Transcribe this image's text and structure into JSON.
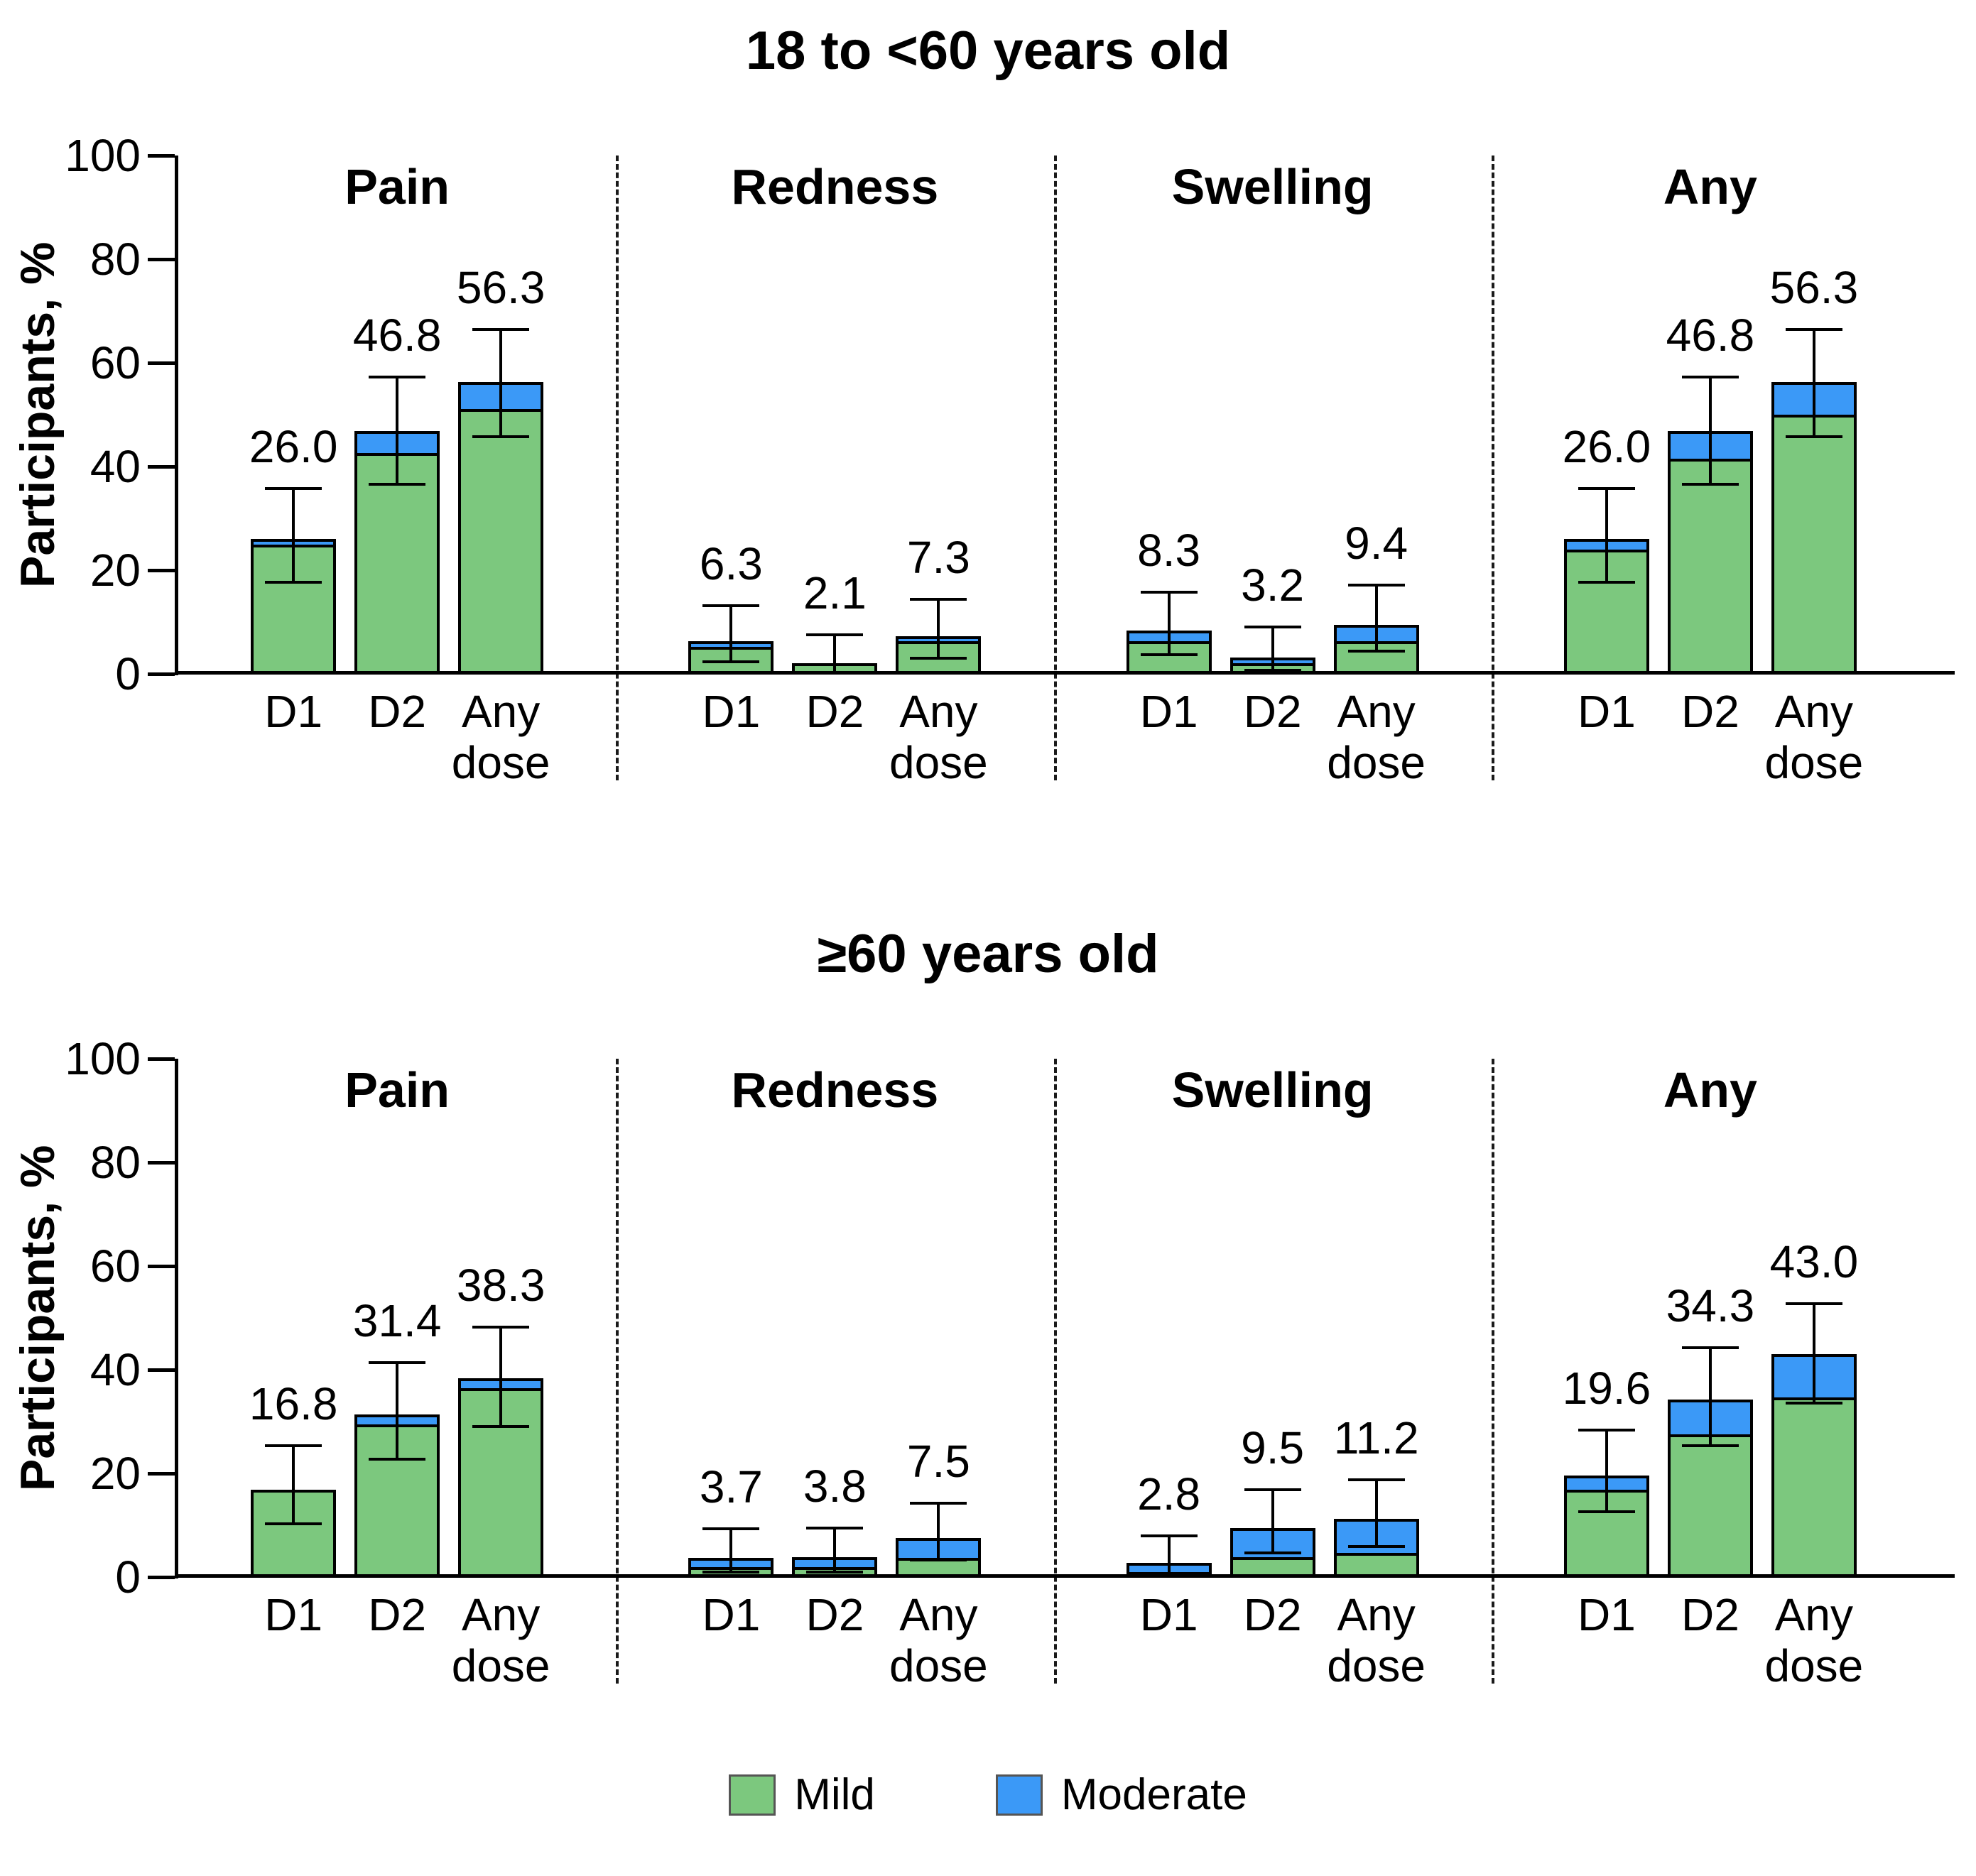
{
  "page": {
    "background": "#ffffff"
  },
  "colors": {
    "mild": "#7CC87E",
    "moderate": "#3B99F7",
    "outline": "#000000",
    "separator": "#1a1a1a"
  },
  "y_axis": {
    "label": "Participants, %",
    "ticks": [
      0,
      20,
      40,
      60,
      80,
      100
    ],
    "max": 100
  },
  "x_tick_labels": [
    "D1",
    "D2",
    "Any dose"
  ],
  "legend": {
    "position": "bottom",
    "items": [
      {
        "label": "Mild",
        "color": "#7CC87E"
      },
      {
        "label": "Moderate",
        "color": "#3B99F7"
      }
    ]
  },
  "chart_data": [
    {
      "type": "bar",
      "stacked": true,
      "title": "18 to <60 years old",
      "ylabel": "Participants, %",
      "ylim": [
        0,
        100
      ],
      "yticks": [
        0,
        20,
        40,
        60,
        80,
        100
      ],
      "grid": false,
      "categories": [
        "D1",
        "D2",
        "Any dose"
      ],
      "series_names": [
        "Mild",
        "Moderate"
      ],
      "error_bars": "95% CI",
      "groups": [
        {
          "name": "Pain",
          "bars": [
            {
              "category": "D1",
              "label": "26.0",
              "total": 26.0,
              "mild": 25.0,
              "moderate": 1.0,
              "ci": [
                17.7,
                35.7
              ]
            },
            {
              "category": "D2",
              "label": "46.8",
              "total": 46.8,
              "mild": 42.6,
              "moderate": 4.2,
              "ci": [
                36.6,
                57.3
              ]
            },
            {
              "category": "Any dose",
              "label": "56.3",
              "total": 56.3,
              "mild": 51.1,
              "moderate": 5.2,
              "ci": [
                45.8,
                66.4
              ]
            }
          ]
        },
        {
          "name": "Redness",
          "bars": [
            {
              "category": "D1",
              "label": "6.3",
              "total": 6.3,
              "mild": 5.2,
              "moderate": 1.1,
              "ci": [
                2.3,
                13.1
              ]
            },
            {
              "category": "D2",
              "label": "2.1",
              "total": 2.1,
              "mild": 2.1,
              "moderate": 0,
              "ci": [
                0.3,
                7.5
              ]
            },
            {
              "category": "Any dose",
              "label": "7.3",
              "total": 7.3,
              "mild": 6.3,
              "moderate": 1.0,
              "ci": [
                3.0,
                14.4
              ]
            }
          ]
        },
        {
          "name": "Swelling",
          "bars": [
            {
              "category": "D1",
              "label": "8.3",
              "total": 8.3,
              "mild": 6.3,
              "moderate": 2.0,
              "ci": [
                3.7,
                15.8
              ]
            },
            {
              "category": "D2",
              "label": "3.2",
              "total": 3.2,
              "mild": 2.1,
              "moderate": 1.1,
              "ci": [
                0.7,
                9.0
              ]
            },
            {
              "category": "Any dose",
              "label": "9.4",
              "total": 9.4,
              "mild": 6.3,
              "moderate": 3.1,
              "ci": [
                4.4,
                17.1
              ]
            }
          ]
        },
        {
          "name": "Any",
          "bars": [
            {
              "category": "D1",
              "label": "26.0",
              "total": 26.0,
              "mild": 24.0,
              "moderate": 2.0,
              "ci": [
                17.7,
                35.7
              ]
            },
            {
              "category": "D2",
              "label": "46.8",
              "total": 46.8,
              "mild": 41.5,
              "moderate": 5.3,
              "ci": [
                36.6,
                57.3
              ]
            },
            {
              "category": "Any dose",
              "label": "56.3",
              "total": 56.3,
              "mild": 50.0,
              "moderate": 6.3,
              "ci": [
                45.8,
                66.4
              ]
            }
          ]
        }
      ]
    },
    {
      "type": "bar",
      "stacked": true,
      "title": "≥60 years old",
      "ylabel": "Participants, %",
      "ylim": [
        0,
        100
      ],
      "yticks": [
        0,
        20,
        40,
        60,
        80,
        100
      ],
      "grid": false,
      "categories": [
        "D1",
        "D2",
        "Any dose"
      ],
      "series_names": [
        "Mild",
        "Moderate"
      ],
      "error_bars": "95% CI",
      "groups": [
        {
          "name": "Pain",
          "bars": [
            {
              "category": "D1",
              "label": "16.8",
              "total": 16.8,
              "mild": 16.8,
              "moderate": 0,
              "ci": [
                10.3,
                25.3
              ]
            },
            {
              "category": "D2",
              "label": "31.4",
              "total": 31.4,
              "mild": 29.5,
              "moderate": 1.9,
              "ci": [
                22.7,
                41.4
              ]
            },
            {
              "category": "Any dose",
              "label": "38.3",
              "total": 38.3,
              "mild": 36.4,
              "moderate": 1.9,
              "ci": [
                29.1,
                48.2
              ]
            }
          ]
        },
        {
          "name": "Redness",
          "bars": [
            {
              "category": "D1",
              "label": "3.7",
              "total": 3.7,
              "mild": 1.9,
              "moderate": 1.8,
              "ci": [
                1.0,
                9.3
              ]
            },
            {
              "category": "D2",
              "label": "3.8",
              "total": 3.8,
              "mild": 1.9,
              "moderate": 1.9,
              "ci": [
                1.0,
                9.5
              ]
            },
            {
              "category": "Any dose",
              "label": "7.5",
              "total": 7.5,
              "mild": 3.7,
              "moderate": 3.8,
              "ci": [
                3.3,
                14.2
              ]
            }
          ]
        },
        {
          "name": "Swelling",
          "bars": [
            {
              "category": "D1",
              "label": "2.8",
              "total": 2.8,
              "mild": 0.9,
              "moderate": 1.9,
              "ci": [
                0.6,
                8.0
              ]
            },
            {
              "category": "D2",
              "label": "9.5",
              "total": 9.5,
              "mild": 3.8,
              "moderate": 5.7,
              "ci": [
                4.7,
                16.8
              ]
            },
            {
              "category": "Any dose",
              "label": "11.2",
              "total": 11.2,
              "mild": 4.7,
              "moderate": 6.5,
              "ci": [
                5.9,
                18.8
              ]
            }
          ]
        },
        {
          "name": "Any",
          "bars": [
            {
              "category": "D1",
              "label": "19.6",
              "total": 19.6,
              "mild": 16.8,
              "moderate": 2.8,
              "ci": [
                12.6,
                28.4
              ]
            },
            {
              "category": "D2",
              "label": "34.3",
              "total": 34.3,
              "mild": 27.6,
              "moderate": 6.7,
              "ci": [
                25.3,
                44.2
              ]
            },
            {
              "category": "Any dose",
              "label": "43.0",
              "total": 43.0,
              "mild": 34.6,
              "moderate": 8.4,
              "ci": [
                33.5,
                52.8
              ]
            }
          ]
        }
      ]
    }
  ]
}
